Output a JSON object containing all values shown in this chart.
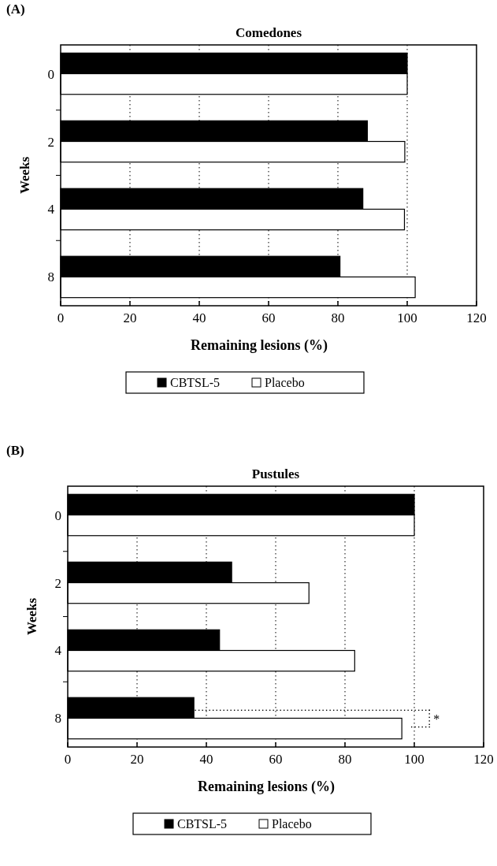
{
  "chart_data": [
    {
      "type": "bar",
      "orientation": "horizontal",
      "title": "Comedones",
      "xlabel": "Remaining lesions (%)",
      "ylabel": "Weeks",
      "categories": [
        "0",
        "2",
        "4",
        "8"
      ],
      "series": [
        {
          "name": "CBTSL-5",
          "color": "#000000",
          "values": [
            100,
            88.5,
            87.2,
            80.6
          ]
        },
        {
          "name": "Placebo",
          "color": "#ffffff",
          "values": [
            100,
            99.3,
            99.2,
            102.3
          ]
        }
      ],
      "xlim": [
        0,
        120
      ],
      "xticks": [
        0,
        20,
        40,
        60,
        80,
        100,
        120
      ],
      "grid": "x",
      "legend": "bottom",
      "annotations": [
        "(A)"
      ]
    },
    {
      "type": "bar",
      "orientation": "horizontal",
      "title": "Pustules",
      "xlabel": "Remaining lesions (%)",
      "ylabel": "Weeks",
      "categories": [
        "0",
        "2",
        "4",
        "8"
      ],
      "series": [
        {
          "name": "CBTSL-5",
          "color": "#000000",
          "values": [
            100,
            47.3,
            43.8,
            36.4
          ]
        },
        {
          "name": "Placebo",
          "color": "#ffffff",
          "values": [
            100,
            69.6,
            82.8,
            96.4
          ]
        }
      ],
      "xlim": [
        0,
        120
      ],
      "xticks": [
        0,
        20,
        40,
        60,
        80,
        100,
        120
      ],
      "grid": "x",
      "legend": "bottom",
      "annotations": [
        "(B)",
        "*"
      ]
    }
  ]
}
